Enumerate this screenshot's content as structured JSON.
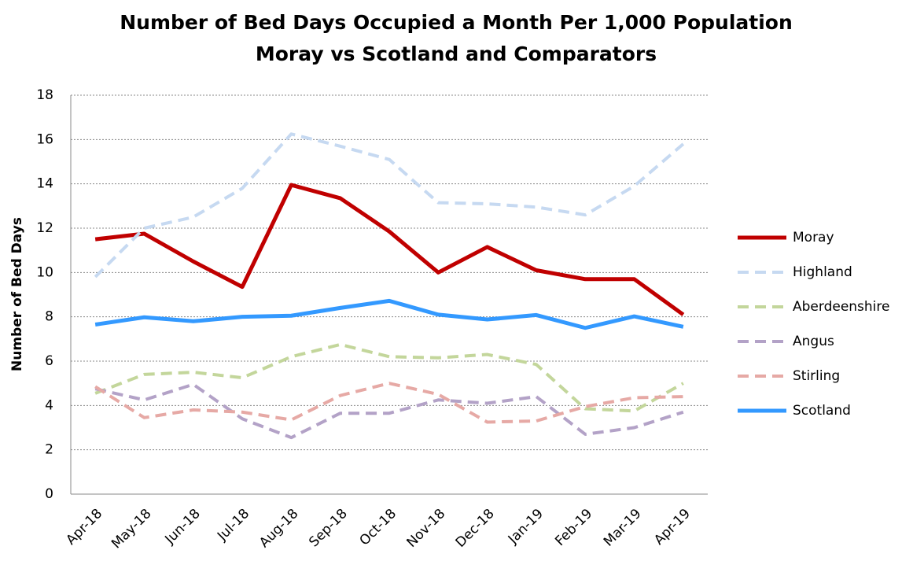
{
  "chart_data": {
    "type": "line",
    "title": "Number of Bed Days Occupied a Month Per 1,000 Population",
    "subtitle": "Moray vs Scotland and Comparators",
    "y_label": "Number of Bed Days",
    "categories": [
      "Apr-18",
      "May-18",
      "Jun-18",
      "Jul-18",
      "Aug-18",
      "Sep-18",
      "Oct-18",
      "Nov-18",
      "Dec-18",
      "Jan-19",
      "Feb-19",
      "Mar-19",
      "Apr-19"
    ],
    "series": [
      {
        "name": "Moray",
        "color": "#c00000",
        "dashed": false,
        "values": [
          11.5,
          11.75,
          10.5,
          9.35,
          13.95,
          13.35,
          11.85,
          10.0,
          11.15,
          10.1,
          9.7,
          9.7,
          8.1
        ]
      },
      {
        "name": "Highland",
        "color": "#c6d9f1",
        "dashed": true,
        "values": [
          9.8,
          12.0,
          12.5,
          13.8,
          16.25,
          15.7,
          15.1,
          13.15,
          13.1,
          12.95,
          12.6,
          13.9,
          15.8
        ]
      },
      {
        "name": "Aberdeenshire",
        "color": "#c3d69b",
        "dashed": true,
        "values": [
          4.55,
          5.4,
          5.5,
          5.25,
          6.2,
          6.75,
          6.2,
          6.15,
          6.3,
          5.85,
          3.85,
          3.75,
          5.0
        ]
      },
      {
        "name": "Angus",
        "color": "#b3a2c7",
        "dashed": true,
        "values": [
          4.75,
          4.25,
          4.95,
          3.4,
          2.55,
          3.65,
          3.65,
          4.25,
          4.1,
          4.4,
          2.7,
          3.0,
          3.7
        ]
      },
      {
        "name": "Stirling",
        "color": "#e6a9a5",
        "dashed": true,
        "values": [
          4.85,
          3.45,
          3.8,
          3.7,
          3.35,
          4.45,
          5.0,
          4.5,
          3.25,
          3.3,
          3.95,
          4.35,
          4.4
        ]
      },
      {
        "name": "Scotland",
        "color": "#3399ff",
        "dashed": false,
        "values": [
          7.65,
          7.98,
          7.8,
          8.0,
          8.05,
          8.4,
          8.72,
          8.1,
          7.88,
          8.08,
          7.5,
          8.02,
          7.55
        ]
      }
    ],
    "ylim": [
      0,
      18
    ],
    "yticks": [
      0,
      2,
      4,
      6,
      8,
      10,
      12,
      14,
      16,
      18
    ],
    "grid": true,
    "legend": "right"
  }
}
